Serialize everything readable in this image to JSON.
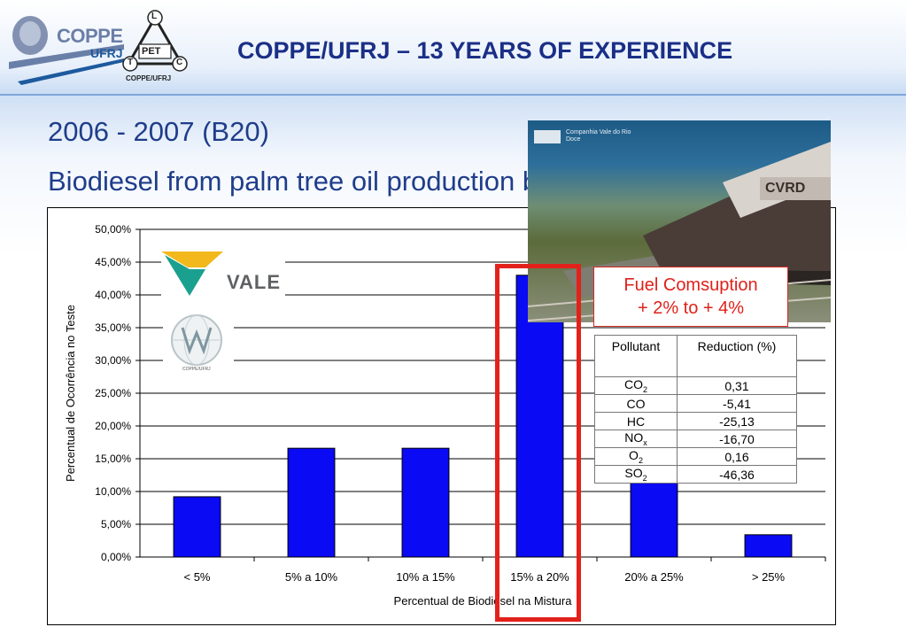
{
  "header": {
    "title": "COPPE/UFRJ – 13 YEARS OF EXPERIENCE",
    "logo_coppe_brand": "COPPE",
    "logo_coppe_sub": "UFRJ",
    "logo_pet_center": "PET",
    "logo_pet_corners": [
      "L",
      "T",
      "C"
    ],
    "logo_pet_footer": "COPPE/UFRJ"
  },
  "slide": {
    "line1": "2006 - 2007 (B20)",
    "line2": "Biodiesel from palm tree oil production byproduct"
  },
  "photo": {
    "company_name": "Companhia Vale do Rio Doce",
    "locomotive_mark": "CVRD"
  },
  "logos": {
    "vale": "VALE",
    "lmg_footer": "COPPE/UFRJ"
  },
  "callout": {
    "line1": "Fuel Comsuption",
    "line2": "+ 2% to + 4%"
  },
  "pollutant_table": {
    "headers": [
      "Pollutant",
      "Reduction (%)"
    ],
    "rows": [
      {
        "name": "CO",
        "sub": "2",
        "value": "0,31"
      },
      {
        "name": "CO",
        "sub": "",
        "value": "-5,41"
      },
      {
        "name": "HC",
        "sub": "",
        "value": "-25,13"
      },
      {
        "name": "NO",
        "sub": "x",
        "value": "-16,70"
      },
      {
        "name": "O",
        "sub": "2",
        "value": "0,16"
      },
      {
        "name": "SO",
        "sub": "2",
        "value": "-46,36"
      }
    ]
  },
  "chart_data": {
    "type": "bar",
    "categories": [
      "< 5%",
      "5% a 10%",
      "10% a 15%",
      "15% a 20%",
      "20% a 25%",
      "> 25%"
    ],
    "values": [
      9.2,
      16.6,
      16.6,
      43.0,
      11.3,
      3.4
    ],
    "xlabel": "Percentual de Biodiesel na Mistura",
    "ylabel": "Percentual de Ocorrência no Teste",
    "ylim": [
      0,
      50
    ],
    "yticks": [
      "0,00%",
      "5,00%",
      "10,00%",
      "15,00%",
      "20,00%",
      "25,00%",
      "30,00%",
      "35,00%",
      "40,00%",
      "45,00%",
      "50,00%"
    ],
    "grid": true,
    "highlighted_category": "15% a 20%",
    "colors": {
      "bar": "#0a0af5",
      "highlight": "#e3211b",
      "grid": "#000000"
    }
  }
}
